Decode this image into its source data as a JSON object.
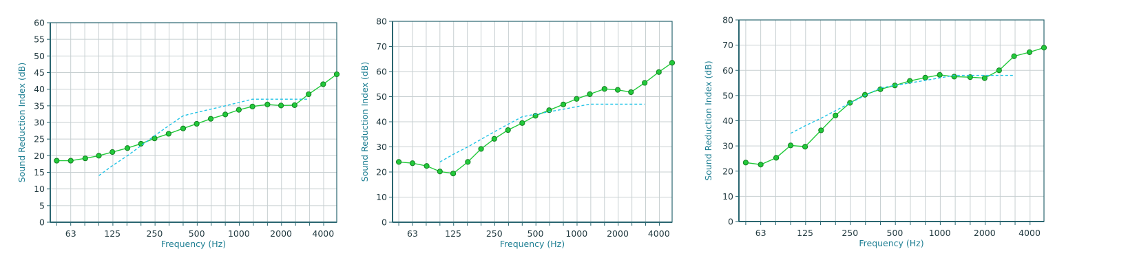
{
  "colors": {
    "measured": "#22c93a",
    "marker_fill": "#22c93a",
    "marker_stroke": "#138022",
    "reference": "#1fc3e6",
    "axis": "#2a6670",
    "grid": "#c7cfd1",
    "axis_title": "#1f7f93"
  },
  "chart_data": [
    {
      "type": "line",
      "xlabel": "Frequency (Hz)",
      "ylabel": "Sound Reduction Index (dB)",
      "x_scale": "log",
      "xlim": [
        45,
        5000
      ],
      "ylim": [
        0,
        60
      ],
      "y_ticks": [
        0,
        5,
        10,
        15,
        20,
        25,
        30,
        35,
        40,
        45,
        50,
        55,
        60
      ],
      "x_tick_labels": [
        "63",
        "125",
        "250",
        "500",
        "1000",
        "2000",
        "4000"
      ],
      "x_ticks": [
        63,
        125,
        250,
        500,
        1000,
        2000,
        4000
      ],
      "grid": true,
      "series": [
        {
          "style": "solid-with-markers",
          "x": [
            50,
            63,
            80,
            100,
            125,
            160,
            200,
            250,
            315,
            400,
            500,
            630,
            800,
            1000,
            1250,
            1600,
            2000,
            2500,
            3150,
            4000,
            5000
          ],
          "y": [
            18.5,
            18.5,
            19.2,
            20.0,
            21.1,
            22.3,
            23.6,
            25.2,
            26.6,
            28.2,
            29.6,
            31.1,
            32.4,
            33.8,
            34.8,
            35.4,
            35.1,
            35.2,
            38.5,
            41.5,
            44.5
          ]
        },
        {
          "style": "dashed",
          "x": [
            100,
            125,
            160,
            200,
            250,
            315,
            400,
            500,
            630,
            800,
            1000,
            1250,
            1600,
            2000,
            2500,
            3150
          ],
          "y": [
            14,
            17,
            20,
            23,
            26,
            29,
            32,
            33,
            34,
            35,
            36,
            37,
            37,
            37,
            37,
            37
          ]
        }
      ]
    },
    {
      "type": "line",
      "xlabel": "Frequency (Hz)",
      "ylabel": "Sound Reduction Index (dB)",
      "x_scale": "log",
      "xlim": [
        45,
        5000
      ],
      "ylim": [
        0,
        80
      ],
      "y_ticks": [
        0,
        10,
        20,
        30,
        40,
        50,
        60,
        70,
        80
      ],
      "x_tick_labels": [
        "63",
        "125",
        "250",
        "500",
        "1000",
        "2000",
        "4000"
      ],
      "x_ticks": [
        63,
        125,
        250,
        500,
        1000,
        2000,
        4000
      ],
      "grid": true,
      "series": [
        {
          "style": "solid-with-markers",
          "x": [
            50,
            63,
            80,
            100,
            125,
            160,
            200,
            250,
            315,
            400,
            500,
            630,
            800,
            1000,
            1250,
            1600,
            2000,
            2500,
            3150,
            4000,
            5000
          ],
          "y": [
            24.0,
            23.5,
            22.4,
            20.2,
            19.4,
            24.0,
            29.2,
            33.2,
            36.7,
            39.5,
            42.4,
            44.6,
            46.9,
            49.1,
            51.0,
            53.1,
            52.7,
            51.8,
            55.5,
            59.8,
            63.5
          ]
        },
        {
          "style": "dashed",
          "x": [
            100,
            125,
            160,
            200,
            250,
            315,
            400,
            500,
            630,
            800,
            1000,
            1250,
            1600,
            2000,
            2500,
            3150
          ],
          "y": [
            24,
            27,
            30,
            33,
            36,
            39,
            42,
            43,
            44,
            45,
            46,
            47,
            47,
            47,
            47,
            47
          ]
        }
      ]
    },
    {
      "type": "line",
      "xlabel": "Frequency (Hz)",
      "ylabel": "Sound Reduction Index (dB)",
      "x_scale": "log",
      "xlim": [
        45,
        5000
      ],
      "ylim": [
        0,
        80
      ],
      "y_ticks": [
        0,
        10,
        20,
        30,
        40,
        50,
        60,
        70,
        80
      ],
      "x_tick_labels": [
        "63",
        "125",
        "250",
        "500",
        "1000",
        "2000",
        "4000"
      ],
      "x_ticks": [
        63,
        125,
        250,
        500,
        1000,
        2000,
        4000
      ],
      "grid": true,
      "series": [
        {
          "style": "solid-with-markers",
          "x": [
            50,
            63,
            80,
            100,
            125,
            160,
            200,
            250,
            315,
            400,
            500,
            630,
            800,
            1000,
            1250,
            1600,
            2000,
            2500,
            3150,
            4000,
            5000
          ],
          "y": [
            23.4,
            22.6,
            25.3,
            30.2,
            29.7,
            36.2,
            42.1,
            47.1,
            50.3,
            52.5,
            54.0,
            55.8,
            57.1,
            58.2,
            57.5,
            57.3,
            56.9,
            60.0,
            65.6,
            67.2,
            69.0
          ]
        },
        {
          "style": "dashed",
          "x": [
            100,
            125,
            160,
            200,
            250,
            315,
            400,
            500,
            630,
            800,
            1000,
            1250,
            1600,
            2000,
            2500,
            3150
          ],
          "y": [
            35,
            38,
            41,
            44,
            47,
            50,
            53,
            54,
            55,
            56,
            57,
            58,
            58,
            58,
            58,
            58
          ]
        }
      ]
    }
  ]
}
